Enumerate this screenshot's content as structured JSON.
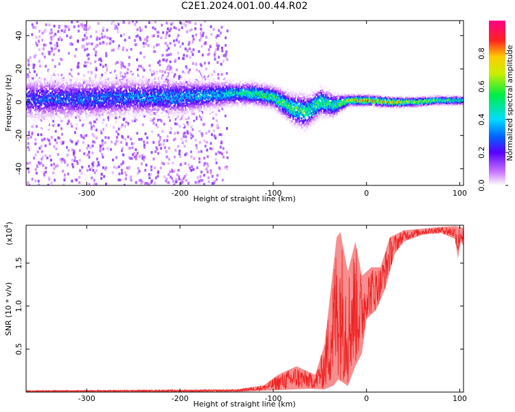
{
  "title": "C2E1.2024.001.00.44.R02",
  "chart_data": [
    {
      "type": "heatmap",
      "title": "C2E1.2024.001.00.44.R02",
      "xlabel": "Height of straight line (km)",
      "ylabel": "Frequency (Hz)",
      "xlim": [
        -365,
        104
      ],
      "ylim": [
        -50,
        49
      ],
      "xticks": [
        -300,
        -200,
        -100,
        0,
        100
      ],
      "xtick_labels": [
        "-300",
        "-200",
        "-100",
        "0",
        "100"
      ],
      "yticks": [
        -40,
        -20,
        0,
        20,
        40
      ],
      "ytick_labels": [
        "-40",
        "-20",
        "0",
        "20",
        "40"
      ],
      "colorbar": {
        "label": "Normalized spectral amplitude",
        "range": [
          0,
          1
        ],
        "ticks": [
          0.0,
          0.2,
          0.4,
          0.6,
          0.8
        ],
        "tick_labels": [
          "0.0",
          "0.2",
          "0.4",
          "0.6",
          "0.8"
        ],
        "colormap": "rainbow (white-violet-blue-cyan-green-yellow-red-magenta)"
      },
      "band_center_hz": [
        {
          "x": -360,
          "y": 2
        },
        {
          "x": -300,
          "y": 2
        },
        {
          "x": -250,
          "y": 3
        },
        {
          "x": -200,
          "y": 3
        },
        {
          "x": -150,
          "y": 5
        },
        {
          "x": -120,
          "y": 5
        },
        {
          "x": -100,
          "y": 3
        },
        {
          "x": -80,
          "y": -4
        },
        {
          "x": -65,
          "y": -6
        },
        {
          "x": -50,
          "y": 0
        },
        {
          "x": -35,
          "y": -2
        },
        {
          "x": -20,
          "y": 1
        },
        {
          "x": 0,
          "y": 1
        },
        {
          "x": 25,
          "y": 0
        },
        {
          "x": 50,
          "y": 0
        },
        {
          "x": 75,
          "y": 1
        },
        {
          "x": 104,
          "y": 1
        }
      ],
      "band_halfwidth_hz": [
        {
          "x": -360,
          "y": 14
        },
        {
          "x": -200,
          "y": 12
        },
        {
          "x": -140,
          "y": 8
        },
        {
          "x": -100,
          "y": 8
        },
        {
          "x": -70,
          "y": 12
        },
        {
          "x": -40,
          "y": 9
        },
        {
          "x": -20,
          "y": 4
        },
        {
          "x": 104,
          "y": 3
        }
      ],
      "peak_amplitude": [
        {
          "x": -360,
          "y": 0.3
        },
        {
          "x": -250,
          "y": 0.35
        },
        {
          "x": -150,
          "y": 0.45
        },
        {
          "x": -120,
          "y": 0.55
        },
        {
          "x": -80,
          "y": 0.6
        },
        {
          "x": -40,
          "y": 0.55
        },
        {
          "x": -20,
          "y": 0.75
        },
        {
          "x": 0,
          "y": 0.9
        },
        {
          "x": 20,
          "y": 0.85
        },
        {
          "x": 50,
          "y": 0.7
        },
        {
          "x": 104,
          "y": 0.55
        }
      ],
      "noise_extent_x": [
        -365,
        -150
      ]
    },
    {
      "type": "line",
      "xlabel": "Height of straight line (km)",
      "ylabel": "SNR (10 * v/v)",
      "ymultiplier_base": "(x10",
      "ymultiplier_exp": "4",
      "ymultiplier_close": ")",
      "xlim": [
        -365,
        104
      ],
      "ylim": [
        0,
        19400
      ],
      "xticks": [
        -300,
        -200,
        -100,
        0,
        100
      ],
      "xtick_labels": [
        "-300",
        "-200",
        "-100",
        "0",
        "100"
      ],
      "yticks": [
        5000,
        10000,
        15000
      ],
      "ytick_labels": [
        "0.5",
        "1.0",
        "1.5"
      ],
      "series": [
        {
          "color": "#ee3333",
          "envelope_low": [
            {
              "x": -365,
              "y": 0
            },
            {
              "x": -140,
              "y": 50
            },
            {
              "x": -100,
              "y": 200
            },
            {
              "x": -60,
              "y": 400
            },
            {
              "x": -45,
              "y": 300
            },
            {
              "x": -35,
              "y": 800
            },
            {
              "x": -30,
              "y": 1500
            },
            {
              "x": -20,
              "y": 700
            },
            {
              "x": -12,
              "y": 3000
            },
            {
              "x": -5,
              "y": 4500
            },
            {
              "x": 0,
              "y": 8500
            },
            {
              "x": 10,
              "y": 9500
            },
            {
              "x": 20,
              "y": 12000
            },
            {
              "x": 30,
              "y": 16000
            },
            {
              "x": 40,
              "y": 17500
            },
            {
              "x": 60,
              "y": 18300
            },
            {
              "x": 80,
              "y": 18500
            },
            {
              "x": 95,
              "y": 17800
            },
            {
              "x": 98,
              "y": 15500
            },
            {
              "x": 101,
              "y": 17500
            },
            {
              "x": 104,
              "y": 17000
            }
          ],
          "envelope_high": [
            {
              "x": -365,
              "y": 200
            },
            {
              "x": -140,
              "y": 300
            },
            {
              "x": -110,
              "y": 800
            },
            {
              "x": -95,
              "y": 2000
            },
            {
              "x": -75,
              "y": 3000
            },
            {
              "x": -55,
              "y": 2000
            },
            {
              "x": -45,
              "y": 5500
            },
            {
              "x": -32,
              "y": 18000
            },
            {
              "x": -28,
              "y": 18600
            },
            {
              "x": -20,
              "y": 14000
            },
            {
              "x": -12,
              "y": 17500
            },
            {
              "x": -5,
              "y": 13500
            },
            {
              "x": 5,
              "y": 14500
            },
            {
              "x": 15,
              "y": 14500
            },
            {
              "x": 25,
              "y": 18000
            },
            {
              "x": 40,
              "y": 18800
            },
            {
              "x": 60,
              "y": 19000
            },
            {
              "x": 80,
              "y": 19200
            },
            {
              "x": 95,
              "y": 19300
            },
            {
              "x": 104,
              "y": 19100
            }
          ]
        }
      ]
    }
  ]
}
